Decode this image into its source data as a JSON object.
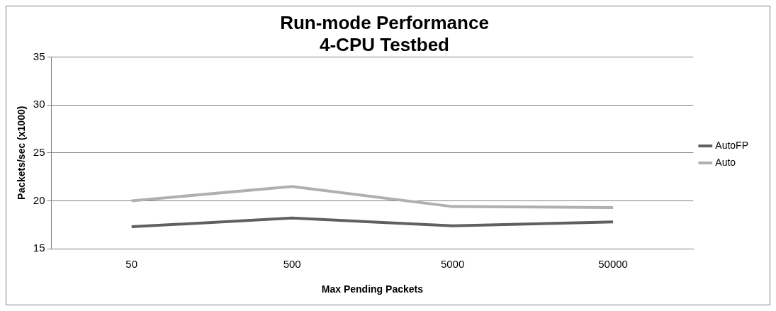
{
  "chart_data": {
    "type": "line",
    "title": "Run-mode Performance\n4-CPU Testbed",
    "xlabel": "Max Pending Packets",
    "ylabel": "Packets/sec (x1000)",
    "categories": [
      "50",
      "500",
      "5000",
      "50000"
    ],
    "series": [
      {
        "name": "AutoFP",
        "color": "#606060",
        "values": [
          17.3,
          18.2,
          17.4,
          17.8
        ]
      },
      {
        "name": "Auto",
        "color": "#b0b0b0",
        "values": [
          20,
          21.5,
          19.4,
          19.3
        ]
      }
    ],
    "ylim": [
      15,
      35
    ],
    "yticks": [
      15,
      20,
      25,
      30,
      35
    ],
    "grid": "y",
    "legend": "right",
    "marker": "none",
    "line_style": "solid"
  }
}
